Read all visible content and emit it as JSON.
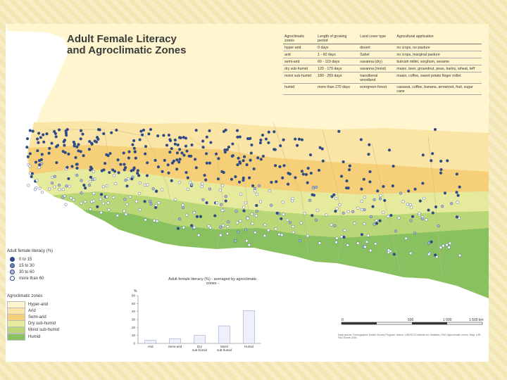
{
  "title_line1": "Adult Female Literacy",
  "title_line2": "and Agroclimatic Zones",
  "zone_table": {
    "headers": [
      "Agroclimatic zones",
      "Length of growing period",
      "Land cover type",
      "Agricultural application"
    ],
    "rows": [
      [
        "hyper-arid",
        "0 days",
        "desert",
        "no crops, no pasture"
      ],
      [
        "arid",
        "1 - 60 days",
        "Sahel",
        "no crops, marginal pasture"
      ],
      [
        "semi-arid",
        "60 - 119 days",
        "savanna (dry)",
        "bulrush millet, sorghum, sesame"
      ],
      [
        "dry sub-humid",
        "120 - 179 days",
        "savanna (moist)",
        "maize, beer, groundnut, peas, barley, wheat, teff"
      ],
      [
        "moist sub-humid",
        "180 - 269 days",
        "transitional woodland",
        "maize, coffee, sweet potato finger millet"
      ],
      [
        "humid",
        "more than 270 days",
        "evergreen forest",
        "cassava, coffee, banana, arrowroot, fruit, sugar cane"
      ]
    ]
  },
  "literacy_legend": {
    "title": "Adult female literacy (%)",
    "items": [
      {
        "label": "0 to 15",
        "color": "#2f4b87"
      },
      {
        "label": "15 to 30",
        "color": "#6c82b5"
      },
      {
        "label": "30 to 60",
        "color": "#aab8d6"
      },
      {
        "label": "more than 60",
        "color": "#ffffff"
      }
    ]
  },
  "zone_legend": {
    "title": "Agroclimatic zones",
    "items": [
      {
        "label": "Hyper-arid",
        "color": "#fff6d0"
      },
      {
        "label": "Arid",
        "color": "#fbe5a6"
      },
      {
        "label": "Semi-arid",
        "color": "#f6cf79"
      },
      {
        "label": "Dry sub-humid",
        "color": "#e6ea9d"
      },
      {
        "label": "Moist sub-humid",
        "color": "#b9d777"
      },
      {
        "label": "Humid",
        "color": "#89c060"
      }
    ]
  },
  "chart_data": {
    "type": "bar",
    "title": "Adult female literacy (%) - averaged by agroclimatic zones -",
    "ylabel": "%",
    "ylim": [
      0,
      60
    ],
    "yticks": [
      0,
      10,
      20,
      30,
      40,
      50,
      60
    ],
    "categories": [
      "Arid",
      "Semi-arid",
      "Dry sub-humid",
      "Moist sub-humid",
      "Humid"
    ],
    "values": [
      4,
      6,
      10,
      22,
      41
    ]
  },
  "scale_bar": {
    "labels": [
      "0",
      "500",
      "1 000",
      "1 500 km"
    ]
  },
  "source_text": "Data source: Demographic Health Survey Program, Macro; UNESCO Institute for Statistics; FAO Agroclimatic zones. Map: ILRI, FAO Rome 2001."
}
